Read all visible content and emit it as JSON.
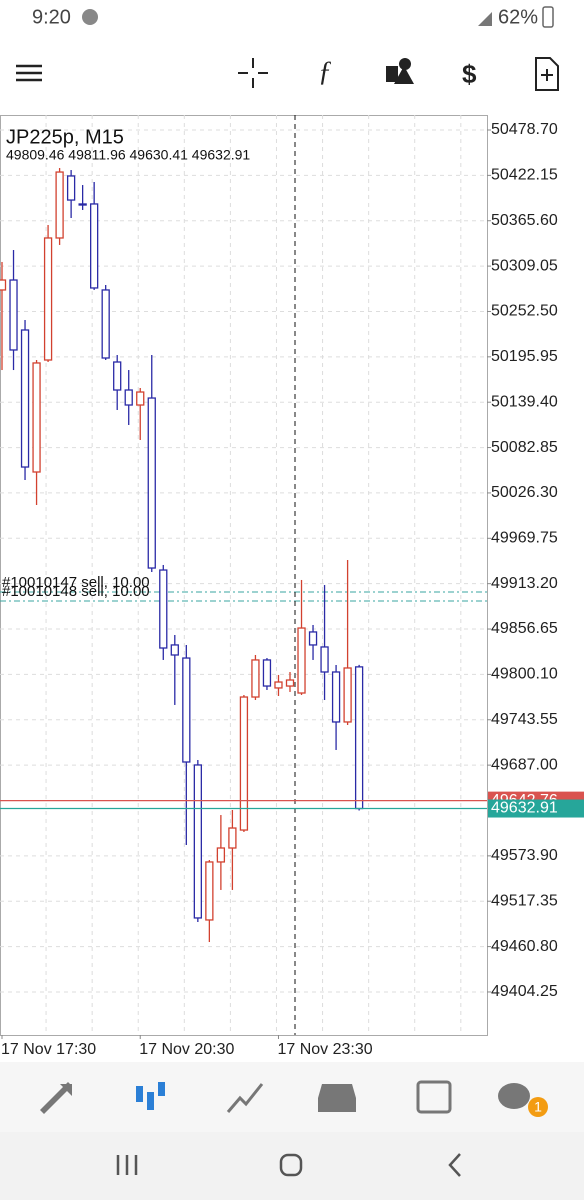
{
  "status_bar": {
    "time": "9:20",
    "battery": "62%"
  },
  "chart_data": {
    "type": "candlestick",
    "title": "JP225p, M15",
    "subtitle": "49809.46 49811.96 49630.41 49632.91",
    "categories": [
      "17 Nov 17:30",
      null,
      null,
      null,
      null,
      null,
      null,
      null,
      null,
      null,
      null,
      null,
      "17 Nov 20:30",
      null,
      null,
      null,
      null,
      null,
      null,
      null,
      null,
      null,
      null,
      null,
      "17 Nov 23:30",
      null,
      null,
      null,
      null,
      null,
      null,
      null
    ],
    "open": [
      50279.3,
      50291.7,
      50229.4,
      50052.4,
      50192.0,
      50344.1,
      50421.4,
      50386.5,
      50386.5,
      50279.3,
      50189.5,
      50154.6,
      50135.9,
      50144.6,
      49930.2,
      49836.8,
      49820.5,
      49687.2,
      49494.0,
      49566.3,
      49583.7,
      49606.1,
      49771.9,
      49818.1,
      49783.2,
      49785.6,
      49776.9,
      49853.0,
      49834.3,
      49803.1,
      49740.8,
      49809.46
    ],
    "high": [
      50314.2,
      50329.1,
      50241.9,
      50192.0,
      50360.3,
      50431.3,
      50428.8,
      50410.1,
      50413.9,
      50285.5,
      50198.2,
      50179.5,
      50157.1,
      50198.2,
      49936.5,
      49849.2,
      49836.8,
      49693.4,
      49568.7,
      49624.8,
      49631.1,
      49774.4,
      49824.3,
      49820.5,
      49799.4,
      49803.1,
      49917.8,
      49861.7,
      49911.5,
      49811.8,
      49942.7,
      49811.96
    ],
    "low": [
      50179.5,
      50179.5,
      50042.4,
      50011.3,
      50189.5,
      50335.4,
      50369.0,
      50379.0,
      50279.3,
      50192.0,
      50129.7,
      50111.0,
      50092.3,
      49927.7,
      49818.1,
      49762.0,
      49587.5,
      49491.5,
      49466.5,
      49531.4,
      49531.4,
      49603.7,
      49768.2,
      49780.7,
      49773.2,
      49778.2,
      49774.4,
      49818.1,
      49768.2,
      49705.9,
      49737.0,
      49630.41
    ],
    "close": [
      50291.7,
      50204.5,
      50058.6,
      50188.3,
      50344.1,
      50426.3,
      50391.4,
      50385.2,
      50281.8,
      50194.5,
      50154.6,
      50135.9,
      50152.1,
      49932.7,
      49833.0,
      49824.3,
      49690.9,
      49496.5,
      49566.3,
      49583.7,
      49608.6,
      49771.9,
      49818.1,
      49785.6,
      49790.6,
      49793.1,
      49857.9,
      49836.8,
      49803.1,
      49740.8,
      49808.1,
      49632.91
    ],
    "up_color": "#d2412f",
    "down_color": "#2a2aa6",
    "ylim": [
      49350.6,
      50497.4
    ],
    "yticks": [
      {
        "value": 50478.7,
        "label": "50478.70"
      },
      50422.15,
      {
        "value": 50365.6,
        "label": "50365.60"
      },
      50309.05,
      {
        "value": 50252.5,
        "label": "50252.50"
      },
      50195.95,
      {
        "value": 50139.4,
        "label": "50139.40"
      },
      50082.85,
      {
        "value": 50026.3,
        "label": "50026.30"
      },
      49969.75,
      {
        "value": 49913.2,
        "label": "49913.20"
      },
      49856.65,
      {
        "value": 49800.1,
        "label": "49800.10"
      },
      49743.55,
      {
        "value": 49687,
        "label": "49687.00"
      },
      {
        "value": 49573.9,
        "label": "49573.90"
      },
      49517.35,
      {
        "value": 49460.8,
        "label": "49460.80"
      },
      49404.25
    ],
    "grid": true,
    "price_lines": [
      {
        "value": 49642.76,
        "color": "#d9534f"
      },
      {
        "value": 49632.91,
        "color": "#26a69a"
      }
    ],
    "orders": [
      {
        "label": "#10010147 sell, 10.00",
        "value": 49902.8
      },
      {
        "label": "#10010148 sell, 10.00",
        "value": 49891.6
      }
    ]
  },
  "nav": {
    "badge": "1"
  }
}
